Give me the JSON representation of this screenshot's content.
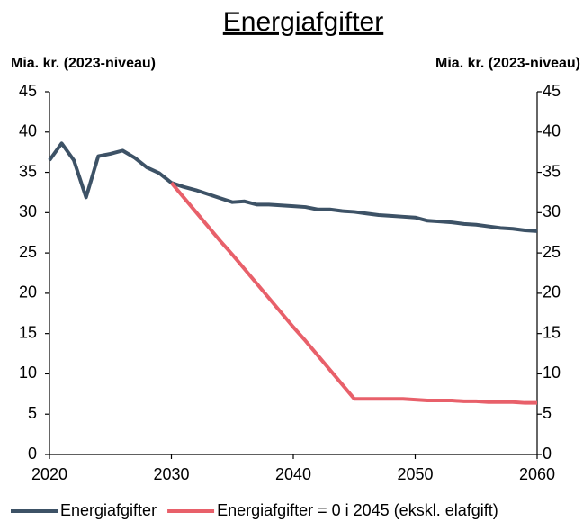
{
  "chart_data": {
    "type": "line",
    "title": "Energiafgifter",
    "ylabel": "Mia. kr. (2023-niveau)",
    "y2label": "Mia. kr. (2023-niveau)",
    "x": [
      2020,
      2021,
      2022,
      2023,
      2024,
      2025,
      2026,
      2027,
      2028,
      2029,
      2030,
      2031,
      2032,
      2033,
      2034,
      2035,
      2036,
      2037,
      2038,
      2039,
      2040,
      2041,
      2042,
      2043,
      2044,
      2045,
      2046,
      2047,
      2048,
      2049,
      2050,
      2051,
      2052,
      2053,
      2054,
      2055,
      2056,
      2057,
      2058,
      2059,
      2060
    ],
    "series": [
      {
        "name": "Energiafgifter",
        "color": "#3d5266",
        "values": [
          36.5,
          38.6,
          36.5,
          31.9,
          37.0,
          37.3,
          37.7,
          36.8,
          35.6,
          34.9,
          33.7,
          33.2,
          32.8,
          32.3,
          31.8,
          31.3,
          31.4,
          31.0,
          31.0,
          30.9,
          30.8,
          30.7,
          30.4,
          30.4,
          30.2,
          30.1,
          29.9,
          29.7,
          29.6,
          29.5,
          29.4,
          29.0,
          28.9,
          28.8,
          28.6,
          28.5,
          28.3,
          28.1,
          28.0,
          27.8,
          27.7
        ]
      },
      {
        "name": "Energiafgifter = 0 i 2045 (ekskl. elafgift)",
        "color": "#e8606a",
        "values": [
          null,
          null,
          null,
          null,
          null,
          null,
          null,
          null,
          null,
          null,
          33.7,
          31.9,
          30.1,
          28.3,
          26.5,
          24.8,
          23.0,
          21.2,
          19.4,
          17.6,
          15.8,
          14.1,
          12.3,
          10.5,
          8.7,
          6.9,
          6.9,
          6.9,
          6.9,
          6.9,
          6.8,
          6.7,
          6.7,
          6.7,
          6.6,
          6.6,
          6.5,
          6.5,
          6.5,
          6.4,
          6.4
        ]
      }
    ],
    "xlim": [
      2020,
      2060
    ],
    "xticks": [
      2020,
      2030,
      2040,
      2050,
      2060
    ],
    "ylim": [
      0,
      45
    ],
    "yticks": [
      0,
      5,
      10,
      15,
      20,
      25,
      30,
      35,
      40,
      45
    ],
    "y2lim": [
      0,
      45
    ],
    "y2ticks": [
      0,
      5,
      10,
      15,
      20,
      25,
      30,
      35,
      40,
      45
    ],
    "legend": "bottom"
  }
}
